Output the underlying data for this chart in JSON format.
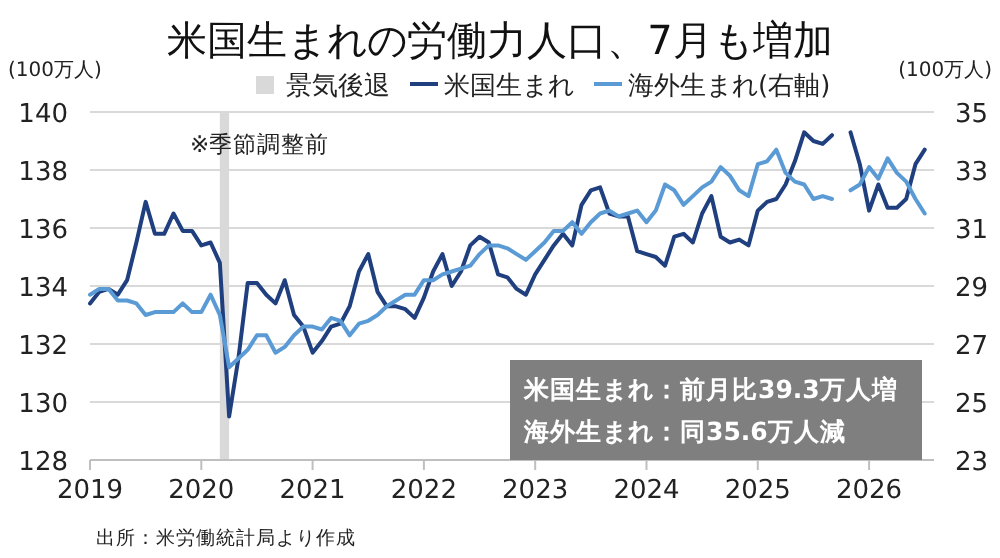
{
  "chart_data": {
    "type": "line",
    "title": "米国生まれの労働力人口、7月も増加",
    "ylabel": "(100万人)",
    "y2label": "(100万人)",
    "annotations": [
      "※季節調整前",
      "米国生まれ：前月比39.3万人増",
      "海外生まれ：同35.6万人減",
      "出所：米労働統計局より作成"
    ],
    "x": [
      "2019-01",
      "2019-02",
      "2019-03",
      "2019-04",
      "2019-05",
      "2019-06",
      "2019-07",
      "2019-08",
      "2019-09",
      "2019-10",
      "2019-11",
      "2019-12",
      "2020-01",
      "2020-02",
      "2020-03",
      "2020-04",
      "2020-05",
      "2020-06",
      "2020-07",
      "2020-08",
      "2020-09",
      "2020-10",
      "2020-11",
      "2020-12",
      "2021-01",
      "2021-02",
      "2021-03",
      "2021-04",
      "2021-05",
      "2021-06",
      "2021-07",
      "2021-08",
      "2021-09",
      "2021-10",
      "2021-11",
      "2021-12",
      "2022-01",
      "2022-02",
      "2022-03",
      "2022-04",
      "2022-05",
      "2022-06",
      "2022-07",
      "2022-08",
      "2022-09",
      "2022-10",
      "2022-11",
      "2022-12",
      "2023-01",
      "2023-02",
      "2023-03",
      "2023-04",
      "2023-05",
      "2023-06",
      "2023-07",
      "2023-08",
      "2023-09",
      "2023-10",
      "2023-11",
      "2023-12",
      "2024-01",
      "2024-02",
      "2024-03",
      "2024-04",
      "2024-05",
      "2024-06",
      "2024-07",
      "2024-08",
      "2024-09",
      "2024-10",
      "2024-11",
      "2024-12",
      "2025-01",
      "2025-02",
      "2025-03",
      "2025-04",
      "2025-05",
      "2025-06",
      "2025-07",
      "2025-08",
      "2025-09",
      "2025-10",
      "2025-11",
      "2025-12",
      "2026-01",
      "2026-02",
      "2026-03",
      "2026-04",
      "2026-05",
      "2026-06",
      "2026-07"
    ],
    "series": [
      {
        "name": "米国生まれ",
        "color": "#1f3f7f",
        "values": [
          133.4,
          133.8,
          133.9,
          133.7,
          134.2,
          135.5,
          136.9,
          135.8,
          135.8,
          136.5,
          135.9,
          135.9,
          135.4,
          135.5,
          134.8,
          129.5,
          131.5,
          134.1,
          134.1,
          133.7,
          133.4,
          134.2,
          133.0,
          132.6,
          131.7,
          132.1,
          132.6,
          132.7,
          133.3,
          134.5,
          135.1,
          133.8,
          133.3,
          133.3,
          133.2,
          132.9,
          133.6,
          134.5,
          135.1,
          134.0,
          134.5,
          135.4,
          135.7,
          135.5,
          134.4,
          134.3,
          133.9,
          133.7,
          134.4,
          134.9,
          135.4,
          135.8,
          135.4,
          136.8,
          137.3,
          137.4,
          136.5,
          136.4,
          136.4,
          135.2,
          135.1,
          135.0,
          134.7,
          135.7,
          135.8,
          135.5,
          136.5,
          137.1,
          135.7,
          135.5,
          135.6,
          135.4,
          136.6,
          136.9,
          137.0,
          137.5,
          138.3,
          139.3,
          139.0,
          138.9,
          139.2,
          null,
          139.3,
          138.2,
          136.6,
          137.5,
          136.7,
          136.7,
          137.0,
          138.2,
          138.7
        ]
      },
      {
        "name": "海外生まれ(右軸)",
        "color": "#5b9bd5",
        "axis": "y2",
        "values": [
          28.7,
          28.9,
          28.9,
          28.5,
          28.5,
          28.4,
          28.0,
          28.1,
          28.1,
          28.1,
          28.4,
          28.1,
          28.1,
          28.7,
          28.0,
          26.2,
          26.5,
          26.8,
          27.3,
          27.3,
          26.7,
          26.9,
          27.3,
          27.6,
          27.6,
          27.5,
          27.9,
          27.8,
          27.3,
          27.7,
          27.8,
          28.0,
          28.3,
          28.5,
          28.7,
          28.7,
          29.2,
          29.2,
          29.4,
          29.5,
          29.6,
          29.7,
          30.1,
          30.4,
          30.4,
          30.3,
          30.1,
          29.9,
          30.2,
          30.5,
          30.9,
          30.9,
          31.2,
          30.8,
          31.2,
          31.5,
          31.6,
          31.4,
          31.5,
          31.6,
          31.2,
          31.6,
          32.5,
          32.3,
          31.8,
          32.1,
          32.4,
          32.6,
          33.1,
          32.8,
          32.3,
          32.1,
          33.2,
          33.3,
          33.7,
          32.9,
          32.6,
          32.5,
          32.0,
          32.1,
          32.0,
          null,
          32.3,
          32.5,
          33.1,
          32.7,
          33.4,
          32.9,
          32.6,
          32.0,
          31.5
        ]
      }
    ],
    "bands": [
      {
        "axis": "x",
        "from": "2020-03",
        "to": "2020-04",
        "label": "景気後退",
        "color": "#d9d9d9"
      }
    ],
    "xlim": [
      "2019-01",
      "2026-08"
    ],
    "xticks": [
      {
        "value": "2019-01",
        "label": "2019"
      },
      {
        "value": "2020-01",
        "label": "2020"
      },
      {
        "value": "2021-01",
        "label": "2021"
      },
      {
        "value": "2022-01",
        "label": "2022"
      },
      {
        "value": "2023-01",
        "label": "2023"
      },
      {
        "value": "2024-01",
        "label": "2024"
      },
      {
        "value": "2025-01",
        "label": "2025"
      },
      {
        "value": "2026-01",
        "label": "2026"
      }
    ],
    "ylim": [
      128,
      140
    ],
    "yticks": [
      128,
      130,
      132,
      134,
      136,
      138,
      140
    ],
    "y2lim": [
      23,
      35
    ],
    "y2ticks": [
      23,
      25,
      27,
      29,
      31,
      33,
      35
    ],
    "grid": "y",
    "legend": "top",
    "line_style": "solid"
  }
}
